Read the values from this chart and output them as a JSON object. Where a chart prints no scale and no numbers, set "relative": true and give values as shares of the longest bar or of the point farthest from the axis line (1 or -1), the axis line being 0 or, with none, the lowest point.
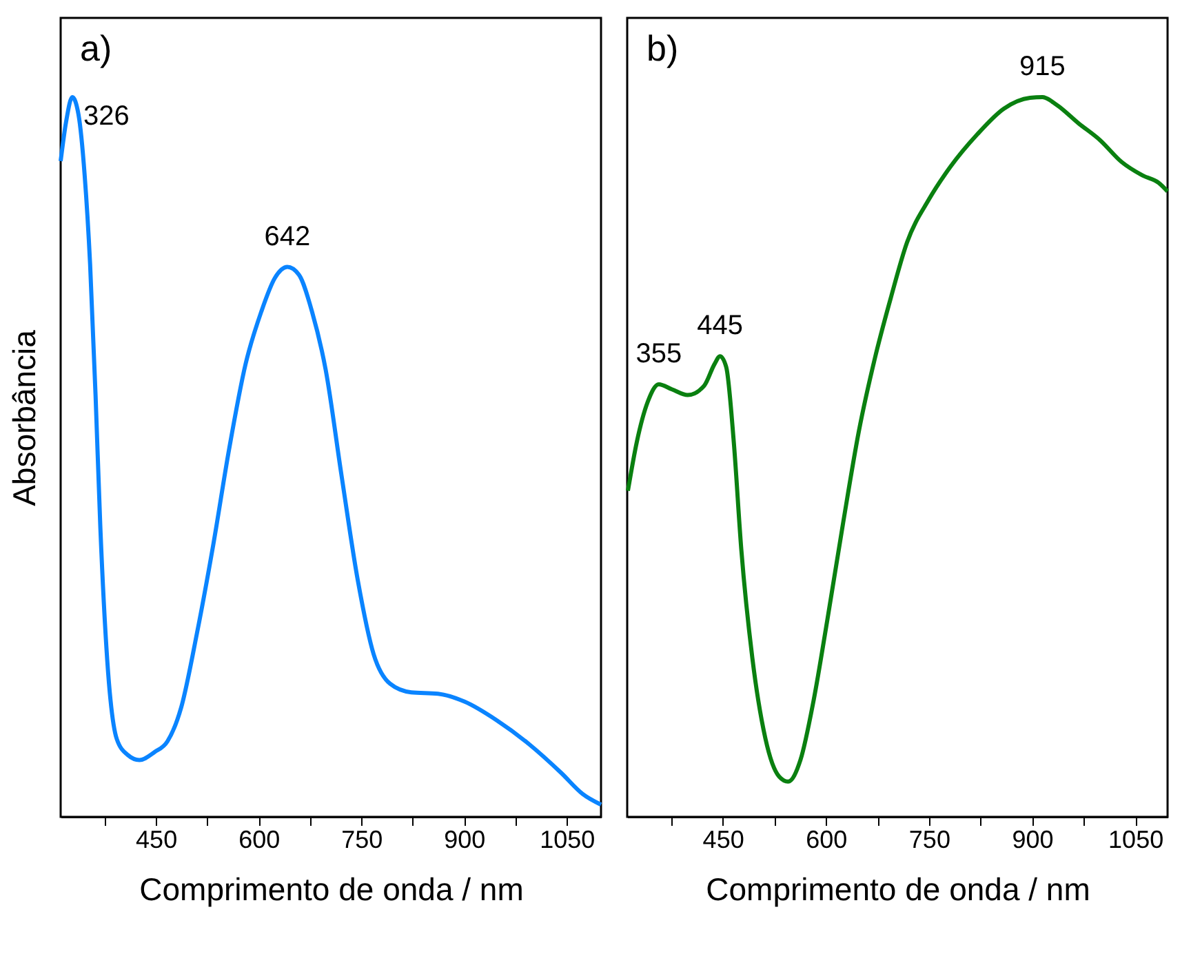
{
  "chart_data": [
    {
      "type": "line",
      "title": "a)",
      "xlabel": "Comprimento de onda / nm",
      "ylabel": "Absorbância",
      "relative": true,
      "tick_labels": "x",
      "grid": false,
      "xlim": [
        311,
        1100
      ],
      "xticks": [
        {
          "value": 375,
          "label": null
        },
        450,
        {
          "value": 525,
          "label": null
        },
        600,
        {
          "value": 675,
          "label": null
        },
        750,
        {
          "value": 825,
          "label": null
        },
        900,
        {
          "value": 975,
          "label": null
        },
        1050
      ],
      "series": [
        {
          "color": "#0a84ff",
          "x": [
            311,
            319,
            328,
            337,
            346,
            354,
            362,
            369,
            379,
            393,
            409,
            426,
            448,
            467,
            487,
            510,
            534,
            557,
            581,
            604,
            624,
            642,
            659,
            678,
            698,
            721,
            745,
            768,
            792,
            823,
            862,
            901,
            948,
            995,
            1042,
            1073,
            1100
          ],
          "values": [
            0.911,
            0.966,
            1.0,
            0.976,
            0.892,
            0.768,
            0.585,
            0.401,
            0.218,
            0.108,
            0.086,
            0.079,
            0.09,
            0.105,
            0.152,
            0.255,
            0.379,
            0.511,
            0.629,
            0.702,
            0.749,
            0.764,
            0.753,
            0.702,
            0.621,
            0.475,
            0.328,
            0.226,
            0.185,
            0.173,
            0.171,
            0.16,
            0.134,
            0.101,
            0.061,
            0.032,
            0.017
          ]
        }
      ],
      "annotations": [
        {
          "text": "326",
          "x": 328,
          "y": 1.0
        },
        {
          "text": "642",
          "x": 642,
          "y": 0.764
        }
      ]
    },
    {
      "type": "line",
      "title": "b)",
      "xlabel": "Comprimento de onda / nm",
      "relative": true,
      "tick_labels": "x",
      "grid": false,
      "xlim": [
        311,
        1097
      ],
      "xticks": [
        {
          "value": 375,
          "label": null
        },
        450,
        {
          "value": 525,
          "label": null
        },
        600,
        {
          "value": 675,
          "label": null
        },
        750,
        {
          "value": 825,
          "label": null
        },
        900,
        {
          "value": 975,
          "label": null
        },
        1050
      ],
      "series": [
        {
          "color": "#0a8010",
          "x": [
            312,
            325,
            341,
            357,
            376,
            399,
            423,
            438,
            446,
            455,
            466,
            477,
            493,
            512,
            532,
            545,
            563,
            582,
            602,
            625,
            648,
            672,
            695,
            718,
            750,
            781,
            820,
            859,
            897,
            915,
            936,
            967,
            999,
            1030,
            1061,
            1084,
            1097
          ],
          "values": [
            0.453,
            0.521,
            0.577,
            0.601,
            0.594,
            0.586,
            0.599,
            0.629,
            0.64,
            0.625,
            0.521,
            0.371,
            0.221,
            0.109,
            0.056,
            0.049,
            0.079,
            0.161,
            0.273,
            0.408,
            0.536,
            0.64,
            0.723,
            0.798,
            0.858,
            0.903,
            0.948,
            0.984,
            0.999,
            1.0,
            0.989,
            0.964,
            0.94,
            0.91,
            0.891,
            0.881,
            0.869
          ]
        }
      ],
      "annotations": [
        {
          "text": "355",
          "x": 357,
          "y": 0.601
        },
        {
          "text": "445",
          "x": 446,
          "y": 0.64
        },
        {
          "text": "915",
          "x": 915,
          "y": 1.0
        }
      ]
    }
  ]
}
